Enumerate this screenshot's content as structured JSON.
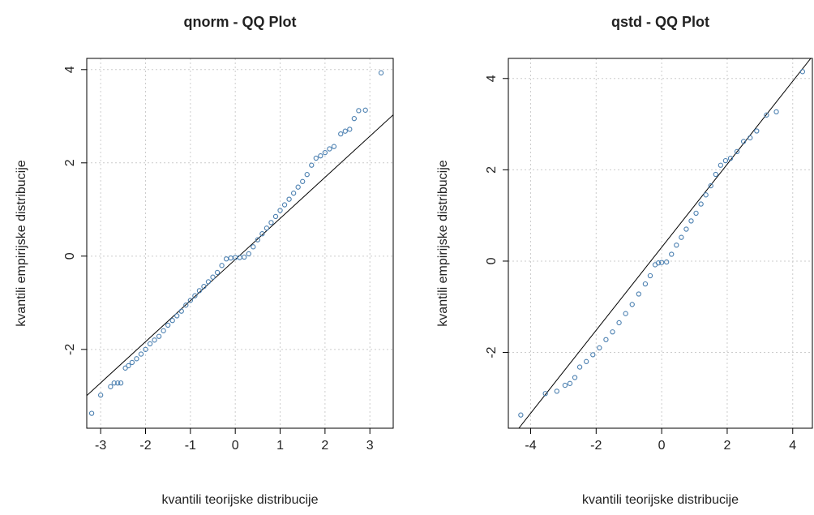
{
  "chart_data": [
    {
      "type": "scatter",
      "title": "qnorm - QQ Plot",
      "x_label": "kvantili teorijske distribucije",
      "y_label": "kvantili empirijske distribucije",
      "color": "#4a7fb0",
      "grid": true,
      "xlim": [
        -3.31,
        3.52
      ],
      "ylim": [
        -3.69,
        4.24
      ],
      "xticks": [
        -3,
        -2,
        -1,
        0,
        1,
        2,
        3
      ],
      "yticks": [
        -2,
        0,
        2,
        4
      ],
      "x": [
        -3.2,
        -3.0,
        -2.78,
        -2.7,
        -2.62,
        -2.55,
        -2.45,
        -2.38,
        -2.3,
        -2.2,
        -2.1,
        -2.0,
        -1.9,
        -1.8,
        -1.7,
        -1.6,
        -1.5,
        -1.4,
        -1.3,
        -1.2,
        -1.1,
        -1.0,
        -0.9,
        -0.8,
        -0.7,
        -0.6,
        -0.5,
        -0.4,
        -0.3,
        -0.2,
        -0.1,
        0,
        0.1,
        0.2,
        0.3,
        0.4,
        0.5,
        0.6,
        0.7,
        0.8,
        0.9,
        1.0,
        1.1,
        1.2,
        1.3,
        1.4,
        1.5,
        1.6,
        1.7,
        1.8,
        1.9,
        2.0,
        2.1,
        2.2,
        2.35,
        2.45,
        2.55,
        2.65,
        2.75,
        2.9,
        3.25
      ],
      "values": [
        -3.37,
        -2.98,
        -2.8,
        -2.72,
        -2.72,
        -2.72,
        -2.4,
        -2.35,
        -2.28,
        -2.2,
        -2.1,
        -2.0,
        -1.88,
        -1.8,
        -1.72,
        -1.6,
        -1.48,
        -1.38,
        -1.28,
        -1.18,
        -1.05,
        -0.95,
        -0.85,
        -0.74,
        -0.65,
        -0.55,
        -0.45,
        -0.35,
        -0.2,
        -0.06,
        -0.04,
        -0.03,
        -0.03,
        -0.02,
        0.05,
        0.2,
        0.35,
        0.48,
        0.6,
        0.72,
        0.85,
        0.98,
        1.1,
        1.22,
        1.35,
        1.48,
        1.6,
        1.75,
        1.95,
        2.1,
        2.15,
        2.22,
        2.3,
        2.35,
        2.62,
        2.68,
        2.72,
        2.95,
        3.12,
        3.13,
        3.93
      ],
      "ref_line": {
        "x": [
          -3.31,
          3.52
        ],
        "y": [
          -2.99,
          3.03
        ]
      }
    },
    {
      "type": "scatter",
      "title": "qstd - QQ Plot",
      "x_label": "kvantili teorijske distribucije",
      "y_label": "kvantili empirijske distribucije",
      "color": "#4a7fb0",
      "grid": true,
      "xlim": [
        -4.68,
        4.6
      ],
      "ylim": [
        -3.66,
        4.44
      ],
      "xticks": [
        -4,
        -2,
        0,
        2,
        4
      ],
      "yticks": [
        -2,
        0,
        2,
        4
      ],
      "x": [
        -4.3,
        -3.55,
        -3.2,
        -2.95,
        -2.8,
        -2.65,
        -2.5,
        -2.3,
        -2.1,
        -1.9,
        -1.7,
        -1.5,
        -1.3,
        -1.1,
        -0.9,
        -0.7,
        -0.5,
        -0.35,
        -0.2,
        -0.1,
        0,
        0.15,
        0.3,
        0.45,
        0.6,
        0.75,
        0.9,
        1.05,
        1.2,
        1.35,
        1.5,
        1.65,
        1.8,
        1.95,
        2.1,
        2.3,
        2.5,
        2.7,
        2.9,
        3.2,
        3.5,
        4.3
      ],
      "values": [
        -3.37,
        -2.9,
        -2.85,
        -2.72,
        -2.68,
        -2.55,
        -2.32,
        -2.2,
        -2.05,
        -1.9,
        -1.72,
        -1.55,
        -1.35,
        -1.15,
        -0.95,
        -0.72,
        -0.5,
        -0.32,
        -0.08,
        -0.04,
        -0.03,
        -0.02,
        0.15,
        0.35,
        0.52,
        0.7,
        0.88,
        1.05,
        1.25,
        1.45,
        1.65,
        1.9,
        2.1,
        2.2,
        2.25,
        2.4,
        2.62,
        2.7,
        2.85,
        3.2,
        3.27,
        4.15
      ],
      "ref_line": {
        "x": [
          -4.36,
          4.55
        ],
        "y": [
          -3.66,
          4.44
        ]
      }
    }
  ]
}
